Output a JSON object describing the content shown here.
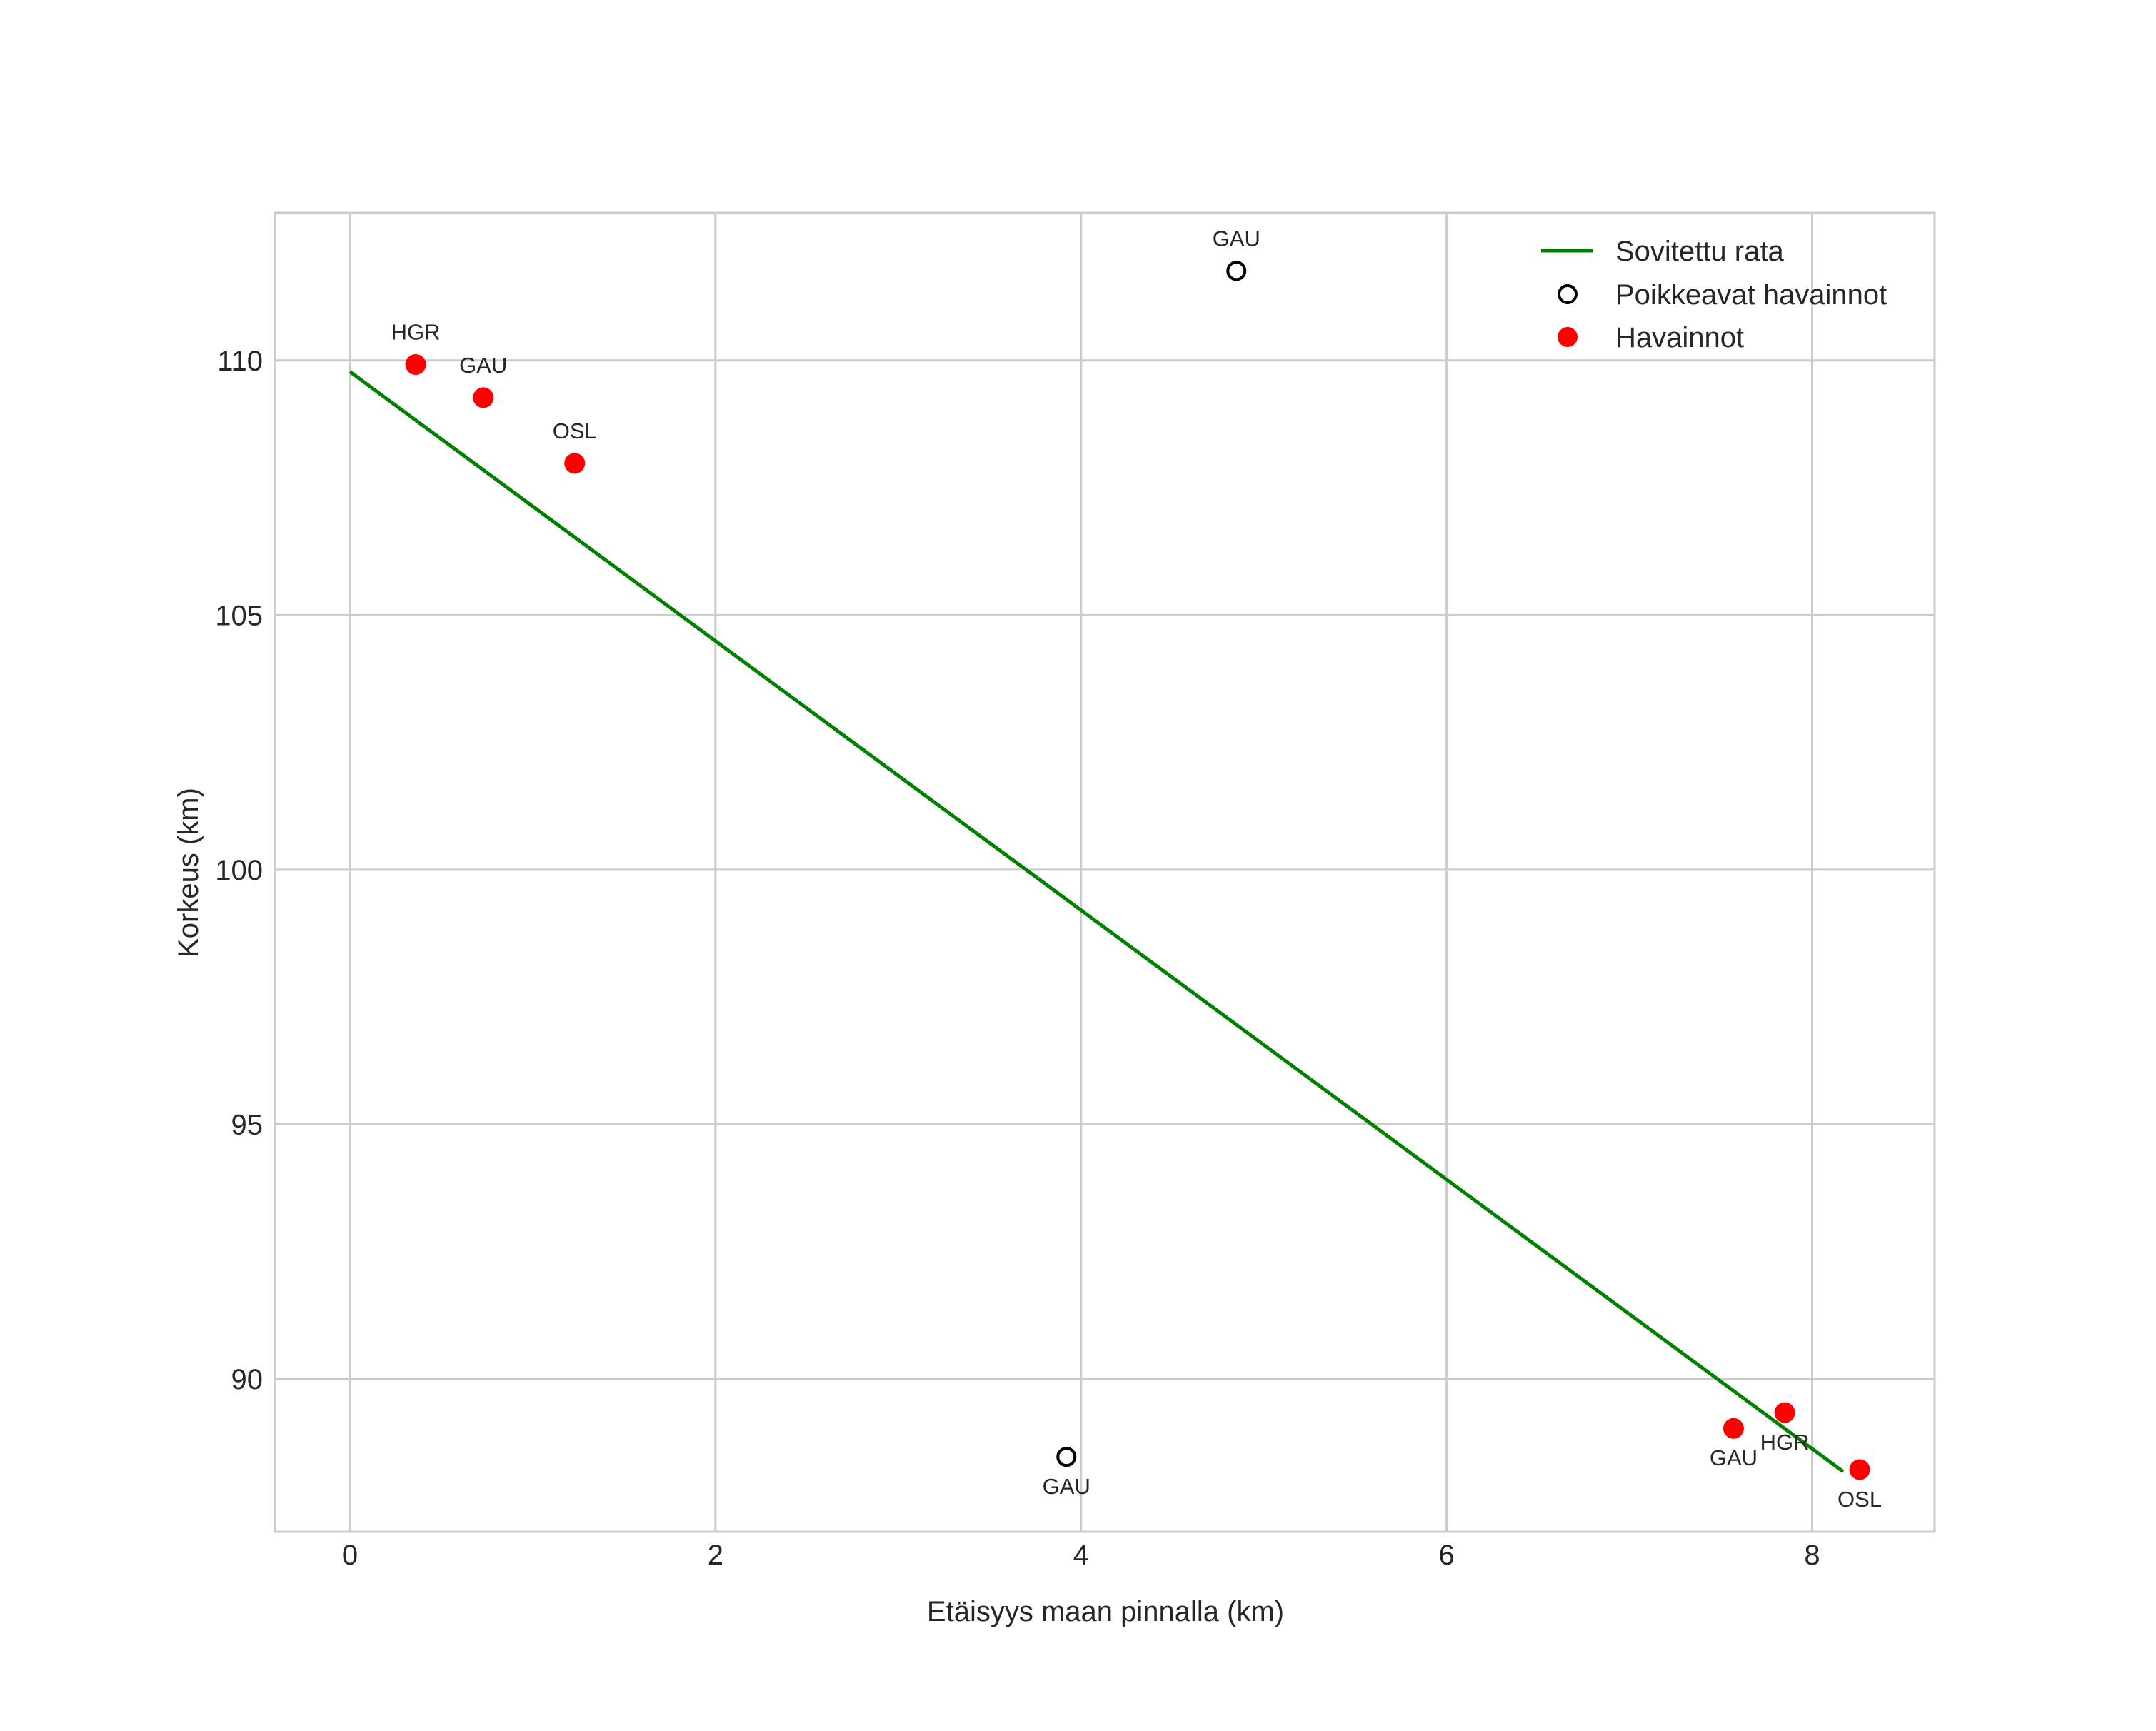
{
  "chart_data": {
    "type": "scatter",
    "title": "",
    "xlabel": "Etäisyys maan pinnalla (km)",
    "ylabel": "Korkeus (km)",
    "xlim": [
      -0.41,
      8.67
    ],
    "ylim": [
      87.0,
      112.9
    ],
    "grid": true,
    "legend_position": "upper right",
    "x_ticks": [
      0,
      2,
      4,
      6,
      8
    ],
    "x_tick_labels": [
      "0",
      "2",
      "4",
      "6",
      "8"
    ],
    "y_ticks": [
      90,
      95,
      100,
      105,
      110
    ],
    "y_tick_labels": [
      "90",
      "95",
      "100",
      "105",
      "110"
    ],
    "series": [
      {
        "name": "Sovitettu rata",
        "kind": "line",
        "color": "#008000",
        "x": [
          0.0,
          8.17
        ],
        "y": [
          109.78,
          88.18
        ]
      },
      {
        "name": "Poikkeavat havainnot",
        "kind": "scatter-hollow",
        "color": "#000000",
        "points": [
          {
            "x": 4.85,
            "y": 111.76,
            "label": "GAU",
            "label_pos": "above"
          },
          {
            "x": 3.92,
            "y": 88.47,
            "label": "GAU",
            "label_pos": "below"
          }
        ]
      },
      {
        "name": "Havainnot",
        "kind": "scatter-filled",
        "color": "#ff0000",
        "points": [
          {
            "x": 0.36,
            "y": 109.92,
            "label": "HGR",
            "label_pos": "above"
          },
          {
            "x": 0.73,
            "y": 109.27,
            "label": "GAU",
            "label_pos": "above"
          },
          {
            "x": 1.23,
            "y": 107.98,
            "label": "OSL",
            "label_pos": "above"
          },
          {
            "x": 7.57,
            "y": 89.03,
            "label": "GAU",
            "label_pos": "below"
          },
          {
            "x": 7.85,
            "y": 89.34,
            "label": "HGR",
            "label_pos": "below"
          },
          {
            "x": 8.26,
            "y": 88.22,
            "label": "OSL",
            "label_pos": "below"
          }
        ]
      }
    ]
  },
  "legend": {
    "items": [
      {
        "label": "Sovitettu rata",
        "symbol": "line",
        "color": "#008000"
      },
      {
        "label": "Poikkeavat havainnot",
        "symbol": "hollow-circle",
        "color": "#000000"
      },
      {
        "label": "Havainnot",
        "symbol": "filled-circle",
        "color": "#ff0000"
      }
    ]
  },
  "colors": {
    "grid": "#cccccc",
    "spine": "#cccccc",
    "text": "#262626",
    "background": "#ffffff"
  }
}
